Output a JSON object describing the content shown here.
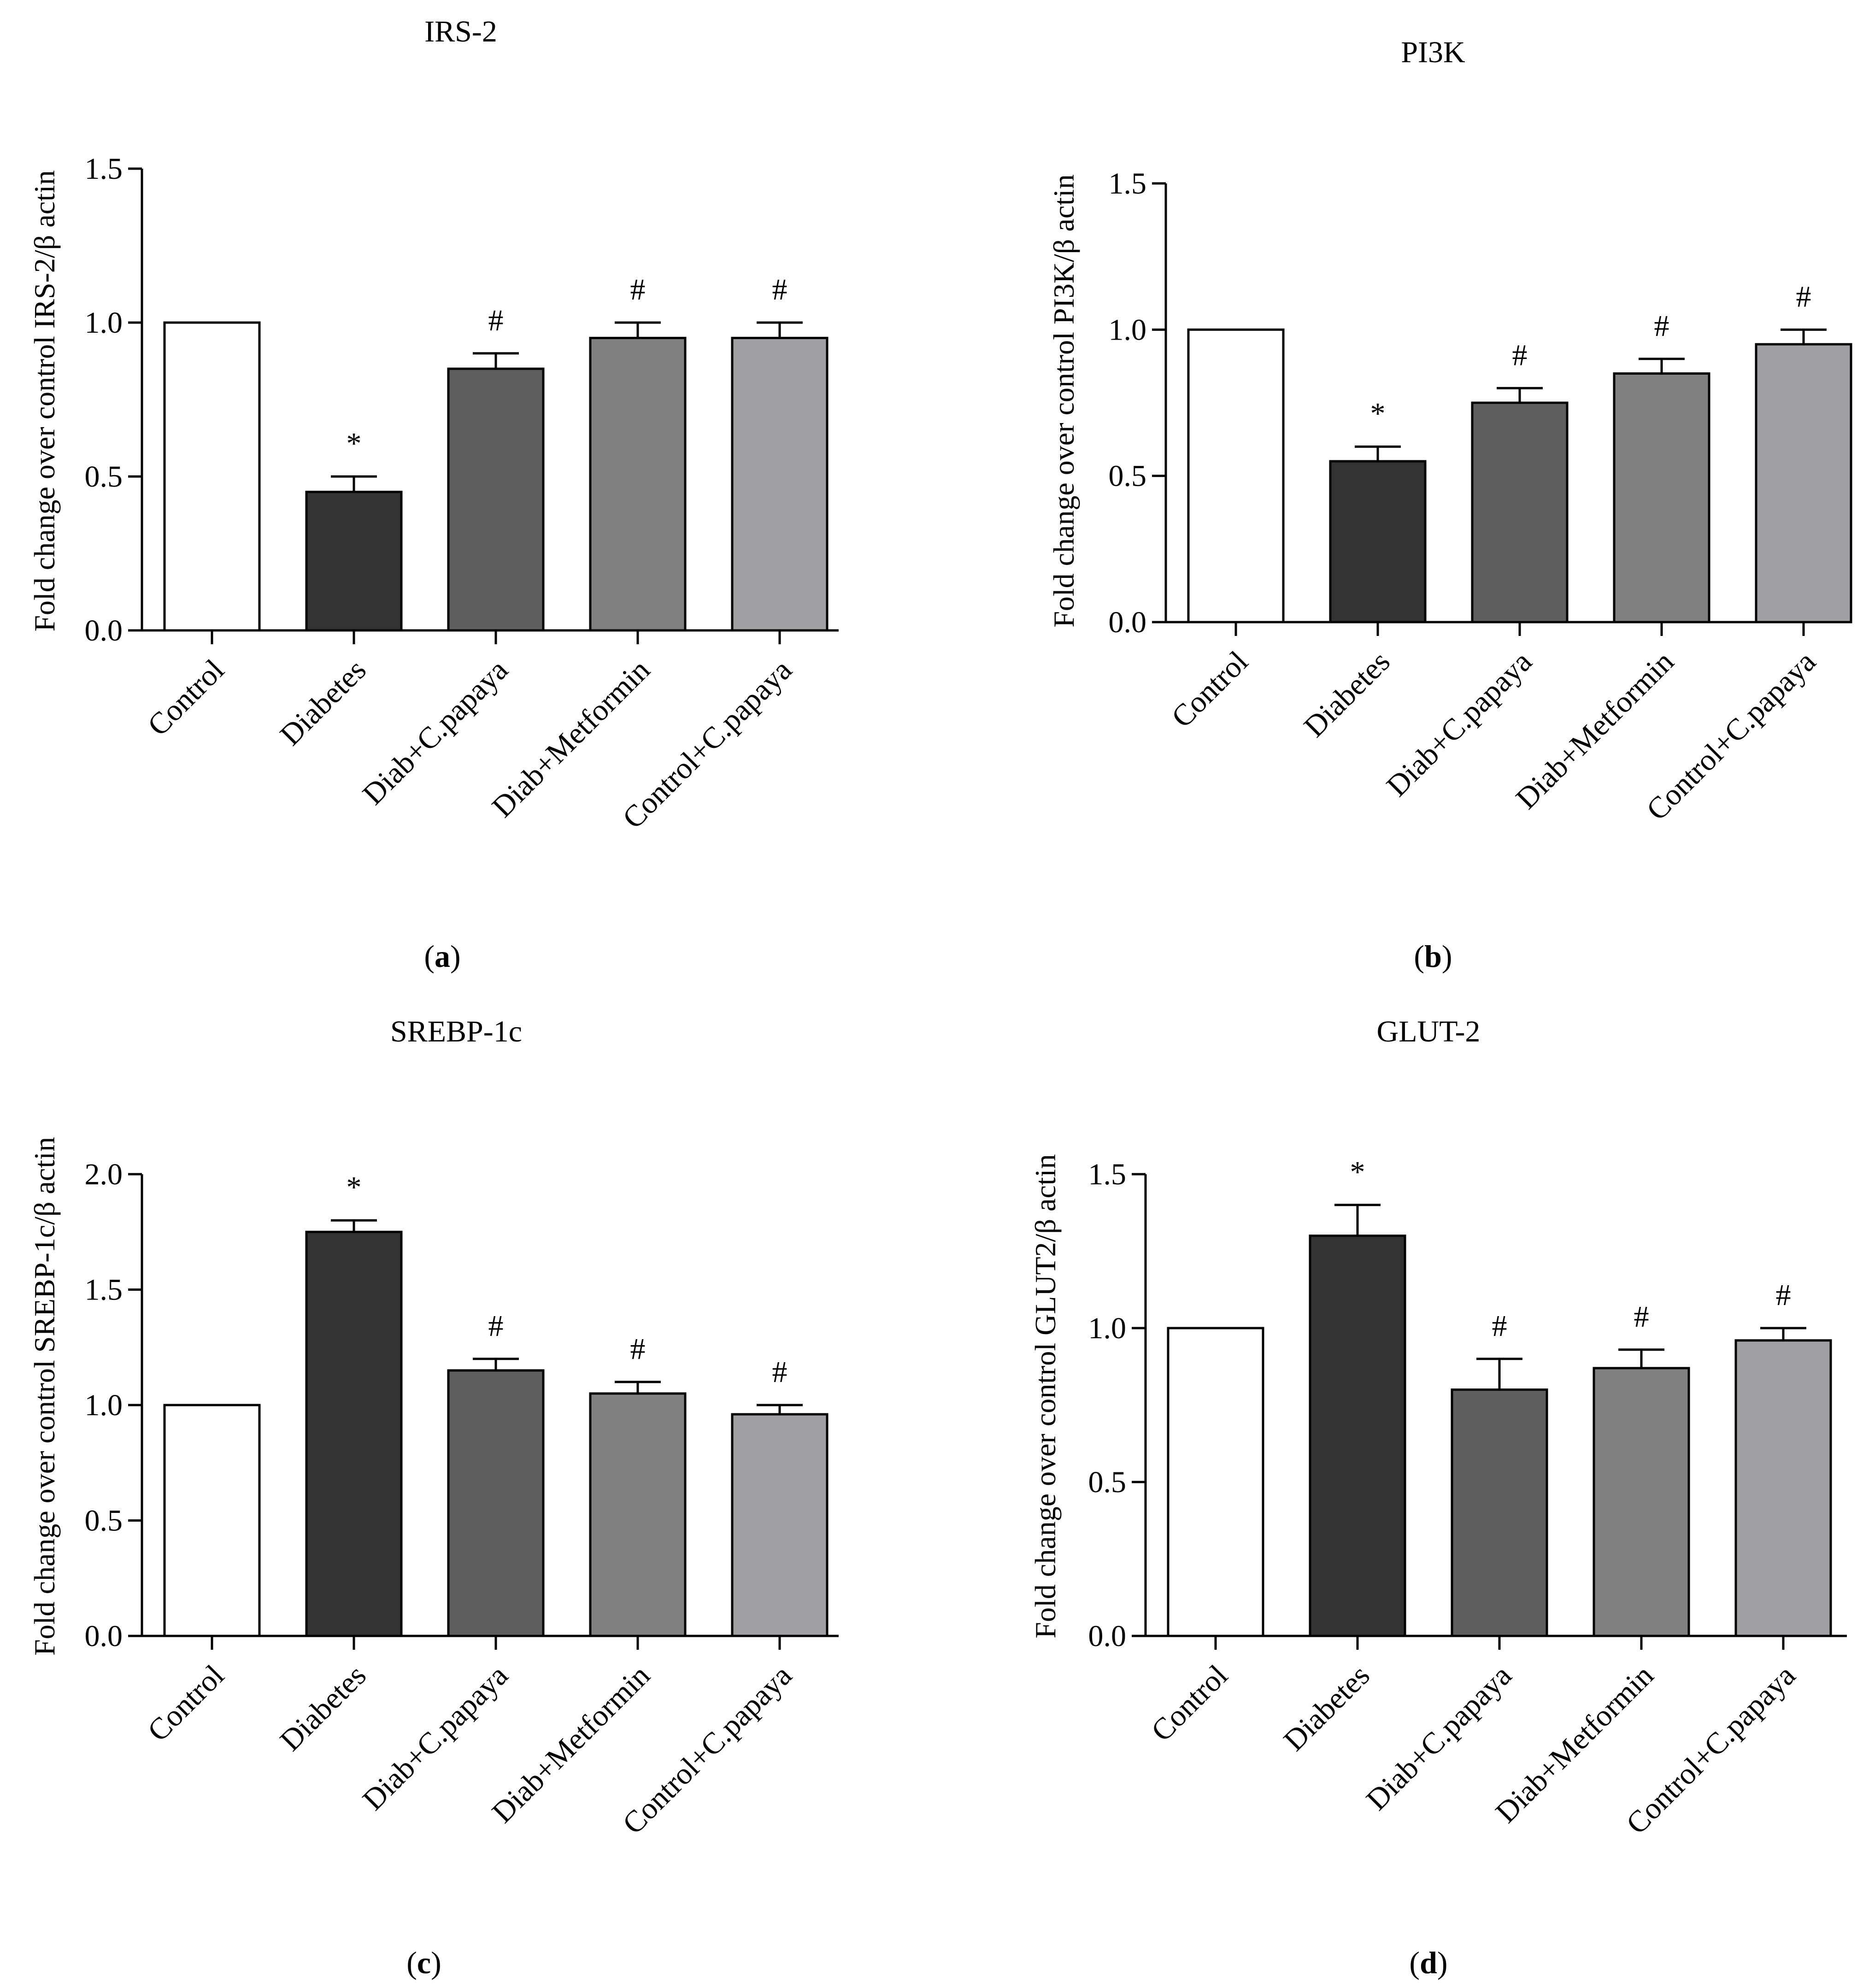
{
  "bar_colors": [
    "#ffffff",
    "#333333",
    "#5f5f5f",
    "#808080",
    "#a0a0a4"
  ],
  "chart_data": [
    {
      "type": "bar",
      "panel": "a",
      "title": "IRS-2",
      "ylabel": "Fold change over control IRS-2/β actin",
      "categories": [
        "Control",
        "Diabetes",
        "Diab+C.papaya",
        "Diab+Metformin",
        "Control+C.papaya"
      ],
      "values": [
        1.0,
        0.45,
        0.85,
        0.95,
        0.95
      ],
      "errors": [
        0,
        0.05,
        0.05,
        0.05,
        0.05
      ],
      "markers": [
        "",
        "*",
        "#",
        "#",
        "#"
      ],
      "ylim": [
        0,
        1.5
      ],
      "yticks": [
        "0.0",
        "0.5",
        "1.0",
        "1.5"
      ]
    },
    {
      "type": "bar",
      "panel": "b",
      "title": "PI3K",
      "ylabel": "Fold change over control PI3K/β actin",
      "categories": [
        "Control",
        "Diabetes",
        "Diab+C.papaya",
        "Diab+Metformin",
        "Control+C.papaya"
      ],
      "values": [
        1.0,
        0.55,
        0.75,
        0.85,
        0.95
      ],
      "errors": [
        0,
        0.05,
        0.05,
        0.05,
        0.05
      ],
      "markers": [
        "",
        "*",
        "#",
        "#",
        "#"
      ],
      "ylim": [
        0,
        1.5
      ],
      "yticks": [
        "0.0",
        "0.5",
        "1.0",
        "1.5"
      ]
    },
    {
      "type": "bar",
      "panel": "c",
      "title": "SREBP-1c",
      "ylabel": "Fold change over control SREBP-1c/β actin",
      "categories": [
        "Control",
        "Diabetes",
        "Diab+C.papaya",
        "Diab+Metformin",
        "Control+C.papaya"
      ],
      "values": [
        1.0,
        1.75,
        1.15,
        1.05,
        0.96
      ],
      "errors": [
        0,
        0.05,
        0.05,
        0.05,
        0.04
      ],
      "markers": [
        "",
        "*",
        "#",
        "#",
        "#"
      ],
      "ylim": [
        0,
        2.0
      ],
      "yticks": [
        "0.0",
        "0.5",
        "1.0",
        "1.5",
        "2.0"
      ]
    },
    {
      "type": "bar",
      "panel": "d",
      "title": "GLUT-2",
      "ylabel": "Fold change over control GLUT2/β actin",
      "categories": [
        "Control",
        "Diabetes",
        "Diab+C.papaya",
        "Diab+Metformin",
        "Control+C.papaya"
      ],
      "values": [
        1.0,
        1.3,
        0.8,
        0.87,
        0.96
      ],
      "errors": [
        0,
        0.1,
        0.1,
        0.06,
        0.04
      ],
      "markers": [
        "",
        "*",
        "#",
        "#",
        "#"
      ],
      "ylim": [
        0,
        1.5
      ],
      "yticks": [
        "0.0",
        "0.5",
        "1.0",
        "1.5"
      ]
    }
  ]
}
